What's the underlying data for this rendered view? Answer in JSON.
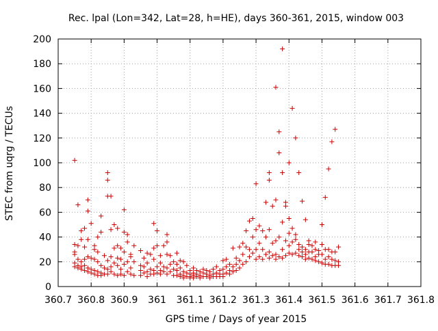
{
  "chart_data": {
    "type": "scatter",
    "title": "Rec. lpal (Lon=342, Lat=28, h=HE), days 360-361, 2015, window 003",
    "xlabel": "GPS time / Days of year 2015",
    "ylabel": "STEC from uqrg / TECUs",
    "xlim": [
      360.7,
      361.8
    ],
    "ylim": [
      0,
      200
    ],
    "x_ticks": [
      "360.7",
      "360.8",
      "360.9",
      "361",
      "361.1",
      "361.2",
      "361.3",
      "361.4",
      "361.5",
      "361.6",
      "361.7",
      "361.8"
    ],
    "y_ticks": [
      "0",
      "20",
      "40",
      "60",
      "80",
      "100",
      "120",
      "140",
      "160",
      "180",
      "200"
    ],
    "grid": true,
    "marker": "+",
    "series": [
      {
        "color": "#cc0000",
        "points": [
          [
            360.75,
            102
          ],
          [
            360.75,
            34
          ],
          [
            360.75,
            28
          ],
          [
            360.75,
            26
          ],
          [
            360.75,
            19
          ],
          [
            360.75,
            16
          ],
          [
            360.76,
            66
          ],
          [
            360.76,
            33
          ],
          [
            360.76,
            22
          ],
          [
            360.76,
            17
          ],
          [
            360.76,
            15
          ],
          [
            360.77,
            45
          ],
          [
            360.77,
            38
          ],
          [
            360.77,
            20
          ],
          [
            360.77,
            16
          ],
          [
            360.77,
            14
          ],
          [
            360.78,
            47
          ],
          [
            360.78,
            32
          ],
          [
            360.78,
            22
          ],
          [
            360.78,
            17
          ],
          [
            360.78,
            13
          ],
          [
            360.79,
            70
          ],
          [
            360.79,
            61
          ],
          [
            360.79,
            38
          ],
          [
            360.79,
            24
          ],
          [
            360.79,
            15
          ],
          [
            360.79,
            12
          ],
          [
            360.8,
            51
          ],
          [
            360.8,
            23
          ],
          [
            360.8,
            14
          ],
          [
            360.8,
            11
          ],
          [
            360.81,
            33
          ],
          [
            360.81,
            30
          ],
          [
            360.81,
            22
          ],
          [
            360.81,
            13
          ],
          [
            360.81,
            10
          ],
          [
            360.82,
            40
          ],
          [
            360.82,
            28
          ],
          [
            360.82,
            20
          ],
          [
            360.82,
            12
          ],
          [
            360.82,
            9
          ],
          [
            360.83,
            57
          ],
          [
            360.83,
            44
          ],
          [
            360.83,
            17
          ],
          [
            360.83,
            11
          ],
          [
            360.83,
            9
          ],
          [
            360.84,
            25
          ],
          [
            360.84,
            15
          ],
          [
            360.84,
            10
          ],
          [
            360.85,
            92
          ],
          [
            360.85,
            86
          ],
          [
            360.85,
            73
          ],
          [
            360.85,
            21
          ],
          [
            360.85,
            14
          ],
          [
            360.85,
            10
          ],
          [
            360.86,
            73
          ],
          [
            360.86,
            46
          ],
          [
            360.86,
            24
          ],
          [
            360.86,
            16
          ],
          [
            360.86,
            12
          ],
          [
            360.87,
            50
          ],
          [
            360.87,
            31
          ],
          [
            360.87,
            19
          ],
          [
            360.87,
            10
          ],
          [
            360.88,
            47
          ],
          [
            360.88,
            33
          ],
          [
            360.88,
            23
          ],
          [
            360.88,
            17
          ],
          [
            360.88,
            9
          ],
          [
            360.89,
            31
          ],
          [
            360.89,
            22
          ],
          [
            360.89,
            14
          ],
          [
            360.89,
            10
          ],
          [
            360.9,
            62
          ],
          [
            360.9,
            44
          ],
          [
            360.9,
            28
          ],
          [
            360.9,
            18
          ],
          [
            360.9,
            9
          ],
          [
            360.91,
            42
          ],
          [
            360.91,
            36
          ],
          [
            360.91,
            20
          ],
          [
            360.91,
            12
          ],
          [
            360.92,
            26
          ],
          [
            360.92,
            24
          ],
          [
            360.92,
            15
          ],
          [
            360.92,
            10
          ],
          [
            360.93,
            33
          ],
          [
            360.93,
            20
          ],
          [
            360.93,
            9
          ],
          [
            360.95,
            29
          ],
          [
            360.95,
            17
          ],
          [
            360.95,
            13
          ],
          [
            360.95,
            9
          ],
          [
            360.96,
            23
          ],
          [
            360.96,
            16
          ],
          [
            360.96,
            11
          ],
          [
            360.97,
            27
          ],
          [
            360.97,
            19
          ],
          [
            360.97,
            12
          ],
          [
            360.97,
            8
          ],
          [
            360.98,
            26
          ],
          [
            360.98,
            14
          ],
          [
            360.98,
            10
          ],
          [
            360.99,
            51
          ],
          [
            360.99,
            31
          ],
          [
            360.99,
            22
          ],
          [
            360.99,
            13
          ],
          [
            360.99,
            10
          ],
          [
            361.0,
            45
          ],
          [
            361.0,
            33
          ],
          [
            361.0,
            16
          ],
          [
            361.0,
            11
          ],
          [
            361.01,
            25
          ],
          [
            361.01,
            19
          ],
          [
            361.01,
            13
          ],
          [
            361.01,
            10
          ],
          [
            361.02,
            33
          ],
          [
            361.02,
            16
          ],
          [
            361.02,
            12
          ],
          [
            361.03,
            42
          ],
          [
            361.03,
            36
          ],
          [
            361.03,
            26
          ],
          [
            361.03,
            15
          ],
          [
            361.03,
            10
          ],
          [
            361.04,
            25
          ],
          [
            361.04,
            18
          ],
          [
            361.04,
            12
          ],
          [
            361.05,
            20
          ],
          [
            361.05,
            14
          ],
          [
            361.05,
            9
          ],
          [
            361.06,
            27
          ],
          [
            361.06,
            18
          ],
          [
            361.06,
            13
          ],
          [
            361.06,
            9
          ],
          [
            361.07,
            21
          ],
          [
            361.07,
            15
          ],
          [
            361.07,
            10
          ],
          [
            361.07,
            8
          ],
          [
            361.08,
            20
          ],
          [
            361.08,
            12
          ],
          [
            361.08,
            9
          ],
          [
            361.08,
            7
          ],
          [
            361.09,
            17
          ],
          [
            361.09,
            11
          ],
          [
            361.09,
            8
          ],
          [
            361.1,
            13
          ],
          [
            361.1,
            10
          ],
          [
            361.1,
            8
          ],
          [
            361.1,
            7
          ],
          [
            361.11,
            15
          ],
          [
            361.11,
            11
          ],
          [
            361.11,
            9
          ],
          [
            361.11,
            7
          ],
          [
            361.12,
            13
          ],
          [
            361.12,
            10
          ],
          [
            361.12,
            8
          ],
          [
            361.13,
            12
          ],
          [
            361.13,
            9
          ],
          [
            361.13,
            7
          ],
          [
            361.14,
            14
          ],
          [
            361.14,
            11
          ],
          [
            361.14,
            8
          ],
          [
            361.15,
            13
          ],
          [
            361.15,
            10
          ],
          [
            361.15,
            8
          ],
          [
            361.16,
            12
          ],
          [
            361.16,
            9
          ],
          [
            361.16,
            7
          ],
          [
            361.17,
            14
          ],
          [
            361.17,
            10
          ],
          [
            361.17,
            8
          ],
          [
            361.18,
            16
          ],
          [
            361.18,
            11
          ],
          [
            361.18,
            8
          ],
          [
            361.19,
            13
          ],
          [
            361.19,
            10
          ],
          [
            361.19,
            8
          ],
          [
            361.2,
            21
          ],
          [
            361.2,
            14
          ],
          [
            361.2,
            10
          ],
          [
            361.2,
            8
          ],
          [
            361.21,
            22
          ],
          [
            361.21,
            16
          ],
          [
            361.21,
            11
          ],
          [
            361.22,
            18
          ],
          [
            361.22,
            13
          ],
          [
            361.22,
            10
          ],
          [
            361.23,
            31
          ],
          [
            361.23,
            16
          ],
          [
            361.23,
            12
          ],
          [
            361.24,
            23
          ],
          [
            361.24,
            18
          ],
          [
            361.24,
            13
          ],
          [
            361.25,
            32
          ],
          [
            361.25,
            21
          ],
          [
            361.25,
            15
          ],
          [
            361.26,
            35
          ],
          [
            361.26,
            26
          ],
          [
            361.26,
            18
          ],
          [
            361.27,
            45
          ],
          [
            361.27,
            32
          ],
          [
            361.27,
            20
          ],
          [
            361.28,
            53
          ],
          [
            361.28,
            30
          ],
          [
            361.28,
            24
          ],
          [
            361.29,
            55
          ],
          [
            361.29,
            40
          ],
          [
            361.29,
            27
          ],
          [
            361.3,
            83
          ],
          [
            361.3,
            46
          ],
          [
            361.3,
            30
          ],
          [
            361.3,
            22
          ],
          [
            361.31,
            49
          ],
          [
            361.31,
            35
          ],
          [
            361.31,
            24
          ],
          [
            361.32,
            45
          ],
          [
            361.32,
            30
          ],
          [
            361.32,
            22
          ],
          [
            361.33,
            68
          ],
          [
            361.33,
            40
          ],
          [
            361.33,
            26
          ],
          [
            361.34,
            92
          ],
          [
            361.34,
            86
          ],
          [
            361.34,
            46
          ],
          [
            361.34,
            28
          ],
          [
            361.34,
            23
          ],
          [
            361.35,
            65
          ],
          [
            361.35,
            35
          ],
          [
            361.35,
            25
          ],
          [
            361.36,
            161
          ],
          [
            361.36,
            70
          ],
          [
            361.36,
            37
          ],
          [
            361.36,
            26
          ],
          [
            361.36,
            22
          ],
          [
            361.37,
            125
          ],
          [
            361.37,
            108
          ],
          [
            361.37,
            40
          ],
          [
            361.37,
            24
          ],
          [
            361.38,
            192
          ],
          [
            361.38,
            92
          ],
          [
            361.38,
            52
          ],
          [
            361.38,
            30
          ],
          [
            361.38,
            23
          ],
          [
            361.39,
            68
          ],
          [
            361.39,
            65
          ],
          [
            361.39,
            37
          ],
          [
            361.39,
            25
          ],
          [
            361.4,
            100
          ],
          [
            361.4,
            55
          ],
          [
            361.4,
            43
          ],
          [
            361.4,
            33
          ],
          [
            361.4,
            27
          ],
          [
            361.41,
            144
          ],
          [
            361.41,
            47
          ],
          [
            361.41,
            36
          ],
          [
            361.41,
            26
          ],
          [
            361.42,
            120
          ],
          [
            361.42,
            42
          ],
          [
            361.42,
            38
          ],
          [
            361.42,
            27
          ],
          [
            361.43,
            92
          ],
          [
            361.43,
            34
          ],
          [
            361.43,
            30
          ],
          [
            361.43,
            25
          ],
          [
            361.44,
            69
          ],
          [
            361.44,
            32
          ],
          [
            361.44,
            28
          ],
          [
            361.44,
            24
          ],
          [
            361.45,
            54
          ],
          [
            361.45,
            30
          ],
          [
            361.45,
            26
          ],
          [
            361.45,
            22
          ],
          [
            361.46,
            37
          ],
          [
            361.46,
            34
          ],
          [
            361.46,
            28
          ],
          [
            361.46,
            23
          ],
          [
            361.47,
            33
          ],
          [
            361.47,
            28
          ],
          [
            361.47,
            22
          ],
          [
            361.48,
            36
          ],
          [
            361.48,
            30
          ],
          [
            361.48,
            24
          ],
          [
            361.48,
            21
          ],
          [
            361.49,
            29
          ],
          [
            361.49,
            26
          ],
          [
            361.49,
            20
          ],
          [
            361.5,
            50
          ],
          [
            361.5,
            34
          ],
          [
            361.5,
            26
          ],
          [
            361.5,
            19
          ],
          [
            361.51,
            72
          ],
          [
            361.51,
            30
          ],
          [
            361.51,
            22
          ],
          [
            361.51,
            18
          ],
          [
            361.52,
            95
          ],
          [
            361.52,
            30
          ],
          [
            361.52,
            24
          ],
          [
            361.52,
            18
          ],
          [
            361.53,
            117
          ],
          [
            361.53,
            28
          ],
          [
            361.53,
            22
          ],
          [
            361.53,
            17
          ],
          [
            361.54,
            127
          ],
          [
            361.54,
            28
          ],
          [
            361.54,
            21
          ],
          [
            361.54,
            17
          ],
          [
            361.55,
            32
          ],
          [
            361.55,
            20
          ],
          [
            361.55,
            17
          ]
        ]
      }
    ]
  }
}
